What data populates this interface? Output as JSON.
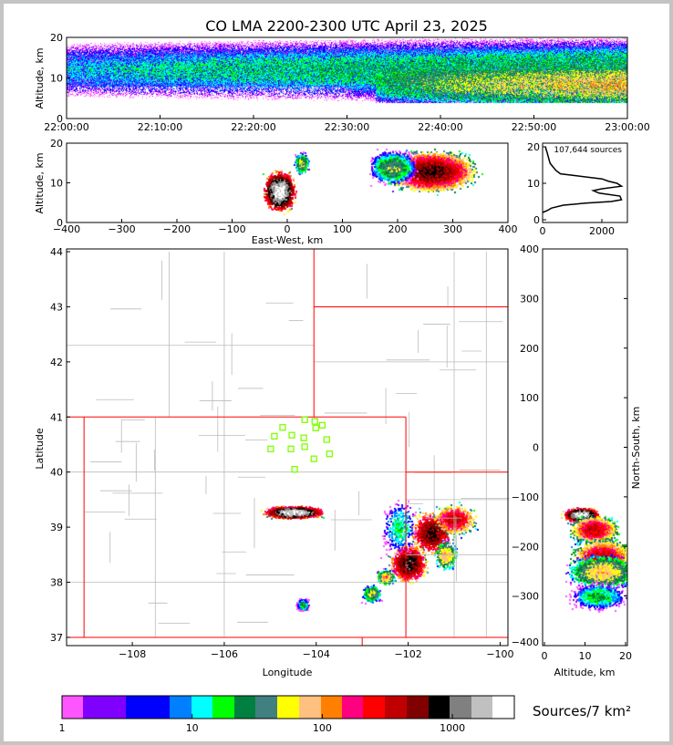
{
  "chart_data": [
    {
      "type": "heatmap",
      "id": "time-altitude",
      "title": "CO LMA 2200-2300 UTC April 23, 2025",
      "ylabel": "Altitude, km",
      "xlim": [
        "22:00:00",
        "23:00:00"
      ],
      "ylim": [
        0,
        20
      ],
      "xticks": [
        "22:00:00",
        "22:10:00",
        "22:20:00",
        "22:30:00",
        "22:40:00",
        "22:50:00",
        "23:00:00"
      ],
      "yticks": [
        "0",
        "10",
        "20"
      ]
    },
    {
      "type": "heatmap",
      "id": "ew-altitude",
      "xlabel": "East-West, km",
      "ylabel": "Altitude, km",
      "xlim": [
        -400,
        400
      ],
      "ylim": [
        0,
        20
      ],
      "xticks": [
        "−400",
        "−300",
        "−200",
        "−100",
        "0",
        "100",
        "200",
        "300",
        "400"
      ],
      "yticks": [
        "0",
        "10",
        "20"
      ]
    },
    {
      "type": "line",
      "id": "altitude-histogram",
      "annotation": "107,644 sources",
      "xlim": [
        0,
        2850
      ],
      "ylim": [
        0,
        20
      ],
      "xticks": [
        "0",
        "2000"
      ],
      "yticks": [
        "0",
        "10",
        "20"
      ],
      "points": [
        [
          0,
          2
        ],
        [
          150,
          2.5
        ],
        [
          300,
          3.2
        ],
        [
          700,
          4
        ],
        [
          1500,
          4.6
        ],
        [
          2300,
          5
        ],
        [
          2650,
          5.5
        ],
        [
          2600,
          6.5
        ],
        [
          1900,
          7.3
        ],
        [
          1700,
          8
        ],
        [
          2000,
          8.5
        ],
        [
          2650,
          9.2
        ],
        [
          2500,
          10
        ],
        [
          2200,
          10.6
        ],
        [
          2000,
          11.2
        ],
        [
          1200,
          12
        ],
        [
          600,
          12.6
        ],
        [
          450,
          13.5
        ],
        [
          350,
          14.5
        ],
        [
          250,
          15.5
        ],
        [
          200,
          17
        ],
        [
          150,
          18.5
        ],
        [
          110,
          19.5
        ],
        [
          100,
          20
        ]
      ]
    },
    {
      "type": "heatmap",
      "id": "plan-view",
      "xlabel": "Longitude",
      "ylabel": "Latitude",
      "xlim": [
        -109.43,
        -99.83
      ],
      "ylim": [
        36.85,
        44.05
      ],
      "xticks": [
        "−108",
        "−106",
        "−104",
        "−102",
        "−100"
      ],
      "yticks": [
        "37",
        "38",
        "39",
        "40",
        "41",
        "42",
        "43",
        "44"
      ],
      "stations": [
        [
          -104.99,
          40.42
        ],
        [
          -104.91,
          40.65
        ],
        [
          -104.73,
          40.81
        ],
        [
          -104.55,
          40.42
        ],
        [
          -104.53,
          40.67
        ],
        [
          -104.47,
          40.05
        ],
        [
          -104.27,
          40.62
        ],
        [
          -104.25,
          40.95
        ],
        [
          -104.25,
          40.46
        ],
        [
          -104.03,
          40.92
        ],
        [
          -104.01,
          40.8
        ],
        [
          -103.87,
          40.85
        ],
        [
          -104.05,
          40.24
        ],
        [
          -103.77,
          40.59
        ],
        [
          -103.71,
          40.33
        ]
      ],
      "cells": [
        [
          -104.5,
          39.28,
          0.45,
          0.08,
          2500
        ],
        [
          -101.5,
          38.9,
          0.35,
          0.3,
          600
        ],
        [
          -101.0,
          39.15,
          0.35,
          0.2,
          300
        ],
        [
          -102.0,
          38.35,
          0.3,
          0.25,
          800
        ],
        [
          -102.5,
          38.1,
          0.15,
          0.1,
          80
        ],
        [
          -102.8,
          37.8,
          0.15,
          0.12,
          40
        ],
        [
          -104.3,
          37.6,
          0.1,
          0.08,
          20
        ],
        [
          -101.2,
          38.5,
          0.2,
          0.2,
          60
        ],
        [
          -102.2,
          39.0,
          0.3,
          0.4,
          10
        ]
      ]
    },
    {
      "type": "heatmap",
      "id": "altitude-ns",
      "xlabel": "Altitude, km",
      "ylabel": "North-South, km",
      "xlim": [
        0,
        20
      ],
      "ylim": [
        -400,
        400
      ],
      "xticks": [
        "0",
        "10",
        "20"
      ],
      "yticks": [
        "−400",
        "−300",
        "−200",
        "−100",
        "0",
        "100",
        "200",
        "300",
        "400"
      ]
    },
    {
      "type": "colorbar",
      "id": "density-colorbar",
      "label": "Sources/7 km²",
      "scale": "log",
      "range": [
        1,
        3000
      ],
      "ticks": [
        "1",
        "10",
        "100",
        "1000"
      ],
      "colors": [
        "#ff55ff",
        "#8000ff",
        "#0000ff",
        "#0080ff",
        "#00ffff",
        "#00ff00",
        "#008040",
        "#408080",
        "#ffff00",
        "#ffc080",
        "#ff8000",
        "#ff0080",
        "#ff0000",
        "#c00000",
        "#800000",
        "#000000",
        "#808080",
        "#c0c0c0",
        "#ffffff"
      ]
    }
  ]
}
